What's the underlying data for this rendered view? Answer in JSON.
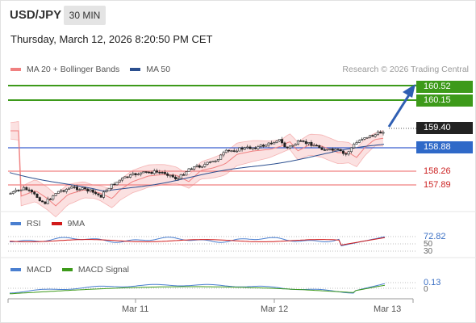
{
  "header": {
    "symbol": "USD/JPY",
    "timeframe": "30 MIN",
    "datetime": "Thursday, March 12, 2026 8:20:50 PM CET"
  },
  "legend": {
    "ma20_label": "MA 20 + Bollinger Bands",
    "ma20_color": "#f08080",
    "ma50_label": "MA 50",
    "ma50_color": "#2b4f8f",
    "credit": "Research © 2026 Trading Central"
  },
  "price_levels": {
    "resistance_2": "160.52",
    "resistance_1": "160.15",
    "last_price": "159.40",
    "pivot": "158.88",
    "support_1": "158.26",
    "support_2": "157.89"
  },
  "rsi_panel": {
    "rsi_label": "RSI",
    "rsi_color": "#4a7fd0",
    "ma_label": "9MA",
    "ma_color": "#d11a1a",
    "value": "72.82",
    "level_50": "50",
    "level_30": "30"
  },
  "macd_panel": {
    "macd_label": "MACD",
    "macd_color": "#4a7fd0",
    "signal_label": "MACD Signal",
    "signal_color": "#3d9a1a",
    "value": "0.13",
    "zero": "0"
  },
  "x_axis": {
    "labels": [
      "Mar 11",
      "Mar 12",
      "Mar 13"
    ]
  }
}
